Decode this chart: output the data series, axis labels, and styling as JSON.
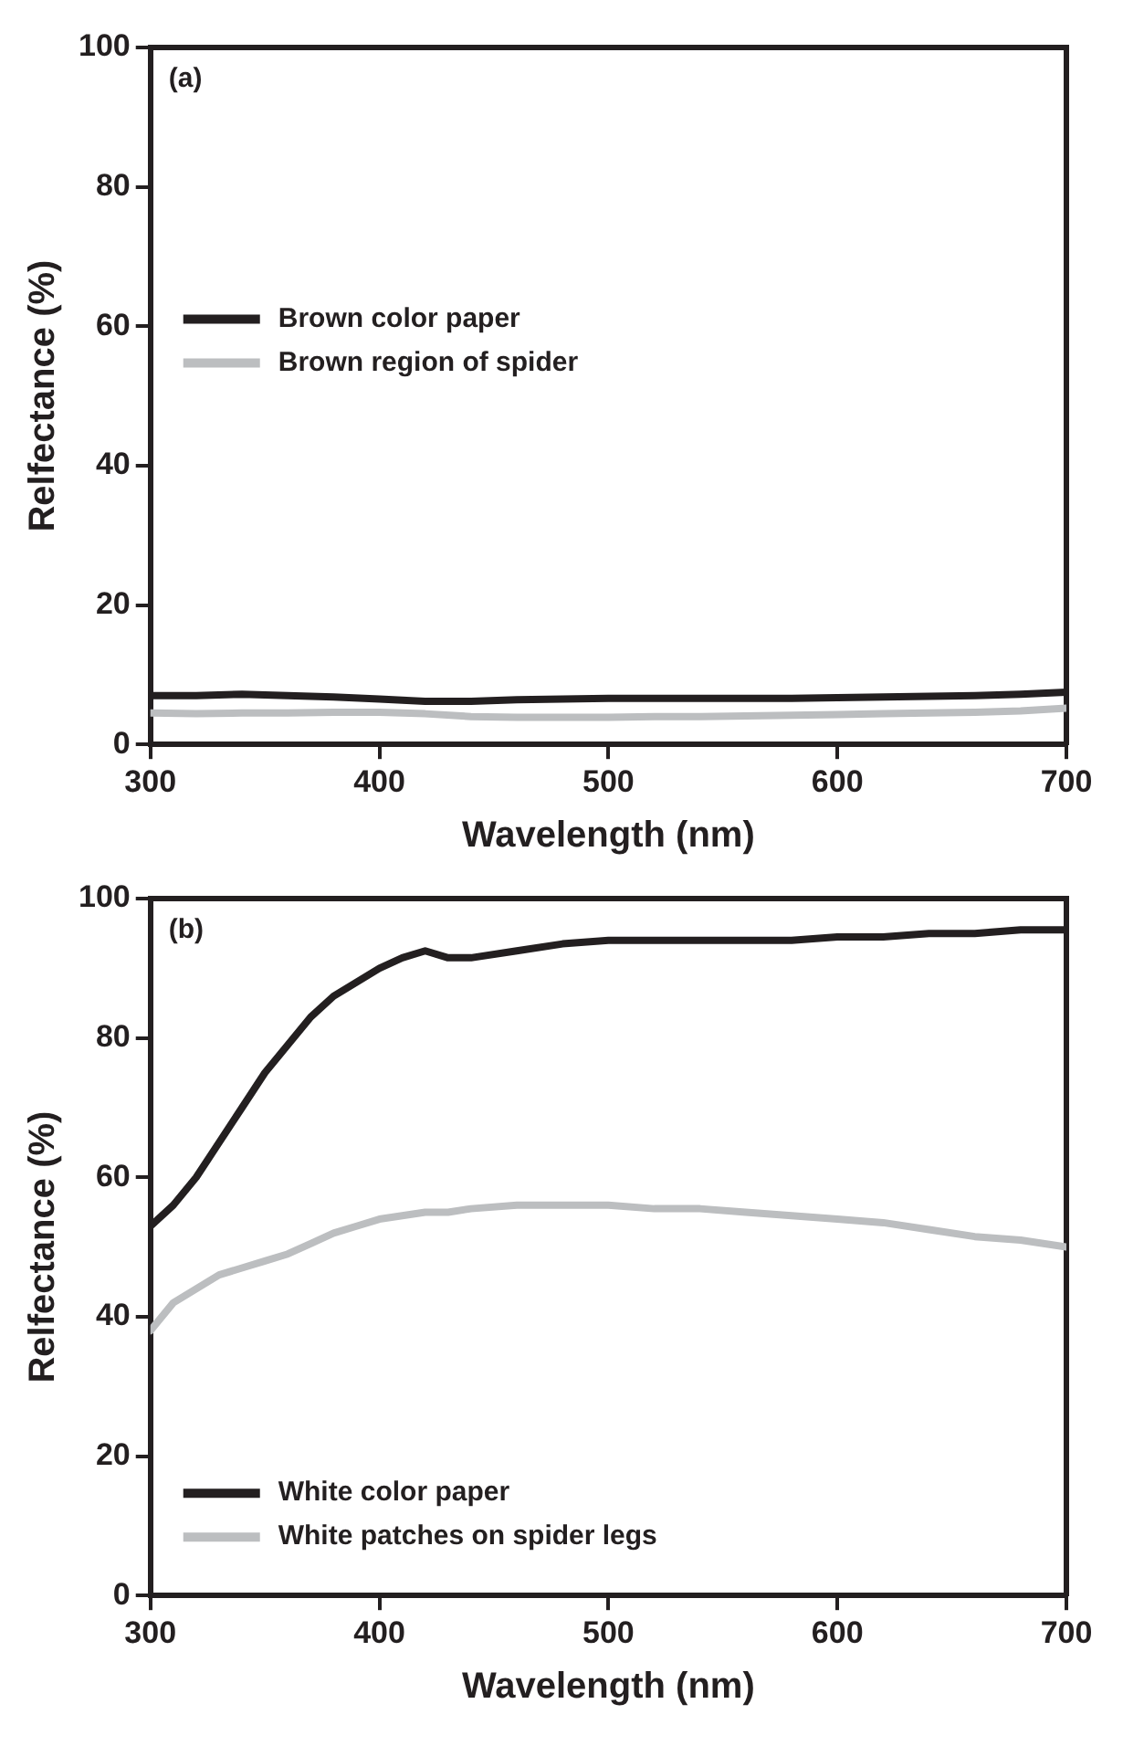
{
  "chart_data": [
    {
      "type": "line",
      "xlabel": "Wavelength (nm)",
      "ylabel": "Relfectance (%)",
      "annotations": [
        "(a)"
      ],
      "legend": "left",
      "marker": "none",
      "line_style": "solid",
      "grid": false,
      "x": [
        300,
        320,
        340,
        360,
        380,
        400,
        420,
        440,
        460,
        480,
        500,
        520,
        540,
        560,
        580,
        600,
        620,
        640,
        660,
        680,
        700
      ],
      "xlim": [
        300,
        700
      ],
      "xticks": [
        300,
        400,
        500,
        600,
        700
      ],
      "ylim": [
        0,
        100
      ],
      "yticks": [
        0,
        20,
        40,
        60,
        80,
        100
      ],
      "series": [
        {
          "name": "Brown color paper",
          "color": "#231f20",
          "values": [
            7,
            7,
            7.2,
            7,
            6.8,
            6.5,
            6.2,
            6.2,
            6.4,
            6.5,
            6.6,
            6.6,
            6.6,
            6.6,
            6.6,
            6.7,
            6.8,
            6.9,
            7,
            7.2,
            7.5
          ]
        },
        {
          "name": "Brown region of spider",
          "color": "#bcbec0",
          "values": [
            4.5,
            4.4,
            4.5,
            4.5,
            4.6,
            4.6,
            4.4,
            4.0,
            3.9,
            3.9,
            3.9,
            4.0,
            4.0,
            4.1,
            4.2,
            4.3,
            4.4,
            4.5,
            4.6,
            4.8,
            5.2
          ]
        }
      ]
    },
    {
      "type": "line",
      "xlabel": "Wavelength (nm)",
      "ylabel": "Relfectance (%)",
      "annotations": [
        "(b)"
      ],
      "legend": "bottom left",
      "marker": "none",
      "line_style": "solid",
      "grid": false,
      "x": [
        300,
        310,
        320,
        330,
        340,
        350,
        360,
        370,
        380,
        390,
        400,
        410,
        420,
        430,
        440,
        460,
        480,
        500,
        520,
        540,
        560,
        580,
        600,
        620,
        640,
        660,
        680,
        700
      ],
      "xlim": [
        300,
        700
      ],
      "xticks": [
        300,
        400,
        500,
        600,
        700
      ],
      "ylim": [
        0,
        100
      ],
      "yticks": [
        0,
        20,
        40,
        60,
        80,
        100
      ],
      "series": [
        {
          "name": "White color paper",
          "color": "#231f20",
          "values": [
            53,
            56,
            60,
            65,
            70,
            75,
            79,
            83,
            86,
            88,
            90,
            91.5,
            92.5,
            91.5,
            91.5,
            92.5,
            93.5,
            94,
            94,
            94,
            94,
            94,
            94.5,
            94.5,
            95,
            95,
            95.5,
            95.5
          ]
        },
        {
          "name": "White patches on spider legs",
          "color": "#bcbec0",
          "values": [
            38,
            42,
            44,
            46,
            47,
            48,
            49,
            50.5,
            52,
            53,
            54,
            54.5,
            55,
            55,
            55.5,
            56,
            56,
            56,
            55.5,
            55.5,
            55,
            54.5,
            54,
            53.5,
            52.5,
            51.5,
            51,
            50
          ]
        }
      ]
    }
  ]
}
